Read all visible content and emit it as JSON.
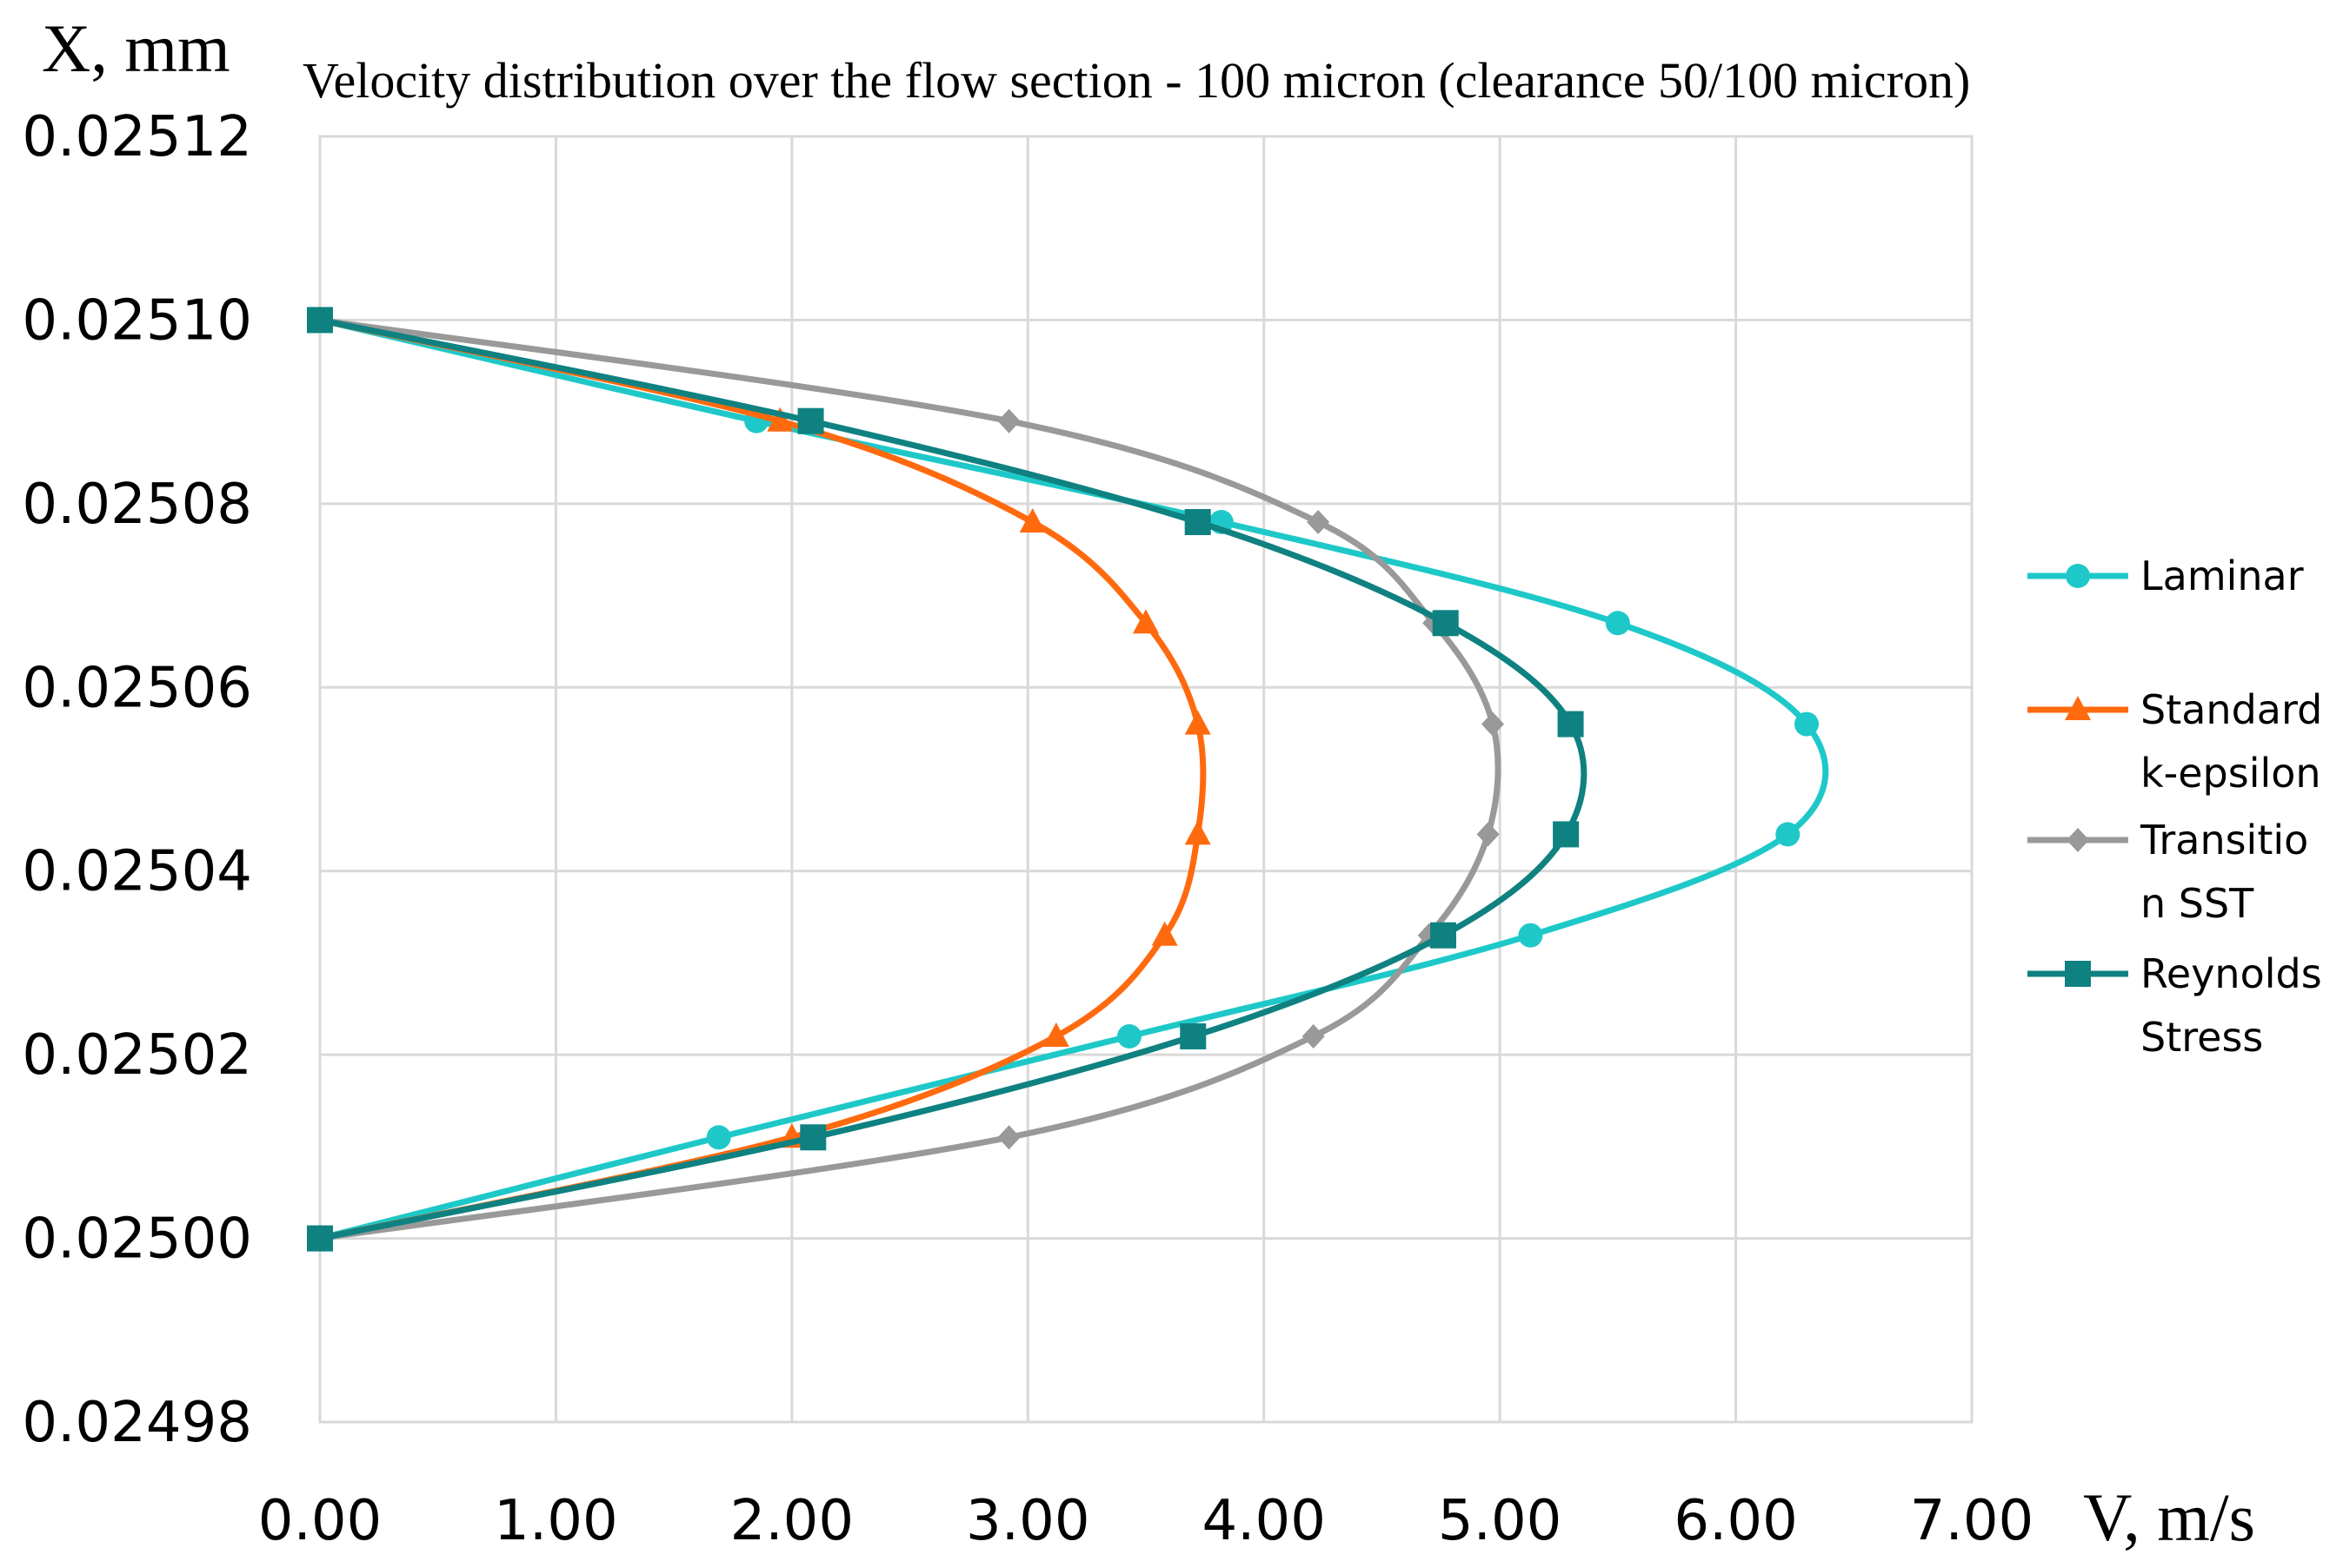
{
  "chart_data": {
    "type": "line",
    "title": "Velocity distribution over the flow section - 100 micron (clearance 50/100 micron)",
    "xlabel": "V, m/s",
    "ylabel": "X, mm",
    "xlim": [
      0,
      7
    ],
    "ylim": [
      0.02498,
      0.02512
    ],
    "x_ticks": [
      "0.00",
      "1.00",
      "2.00",
      "3.00",
      "4.00",
      "5.00",
      "6.00",
      "7.00"
    ],
    "y_ticks": [
      "0.02498",
      "0.02500",
      "0.02502",
      "0.02504",
      "0.02506",
      "0.02508",
      "0.02510",
      "0.02512"
    ],
    "grid": true,
    "legend_position": "right",
    "series": [
      {
        "name": "Laminar",
        "legend_lines": [
          "Laminar"
        ],
        "color": "#1fc8c8",
        "marker": "circle",
        "x": [
          0.0,
          1.85,
          3.82,
          5.5,
          6.3,
          6.22,
          5.13,
          3.43,
          1.69,
          0.0
        ],
        "y": [
          0.0251,
          0.025089,
          0.025078,
          0.025067,
          0.025056,
          0.025044,
          0.025033,
          0.025022,
          0.025011,
          0.025
        ]
      },
      {
        "name": "Standard k-epsilon",
        "legend_lines": [
          "Standard",
          "k-epsilon"
        ],
        "color": "#ff6a0f",
        "marker": "triangle",
        "x": [
          0.0,
          1.95,
          3.02,
          3.5,
          3.72,
          3.72,
          3.58,
          3.12,
          2.0,
          0.0
        ],
        "y": [
          0.0251,
          0.025089,
          0.025078,
          0.025067,
          0.025056,
          0.025044,
          0.025033,
          0.025022,
          0.025011,
          0.025
        ]
      },
      {
        "name": "Transition SST",
        "legend_lines": [
          "Transitio",
          "n SST"
        ],
        "color": "#999999",
        "marker": "diamond",
        "x": [
          0.0,
          2.92,
          4.23,
          4.72,
          4.97,
          4.95,
          4.7,
          4.21,
          2.92,
          0.0
        ],
        "y": [
          0.0251,
          0.025089,
          0.025078,
          0.025067,
          0.025056,
          0.025044,
          0.025033,
          0.025022,
          0.025011,
          0.025
        ]
      },
      {
        "name": "Reynolds Stress",
        "legend_lines": [
          "Reynolds",
          "Stress"
        ],
        "color": "#0f8181",
        "marker": "square",
        "x": [
          0.0,
          2.08,
          3.72,
          4.77,
          5.3,
          5.28,
          4.76,
          3.7,
          2.09,
          0.0
        ],
        "y": [
          0.0251,
          0.025089,
          0.025078,
          0.025067,
          0.025056,
          0.025044,
          0.025033,
          0.025022,
          0.025011,
          0.025
        ]
      }
    ]
  }
}
